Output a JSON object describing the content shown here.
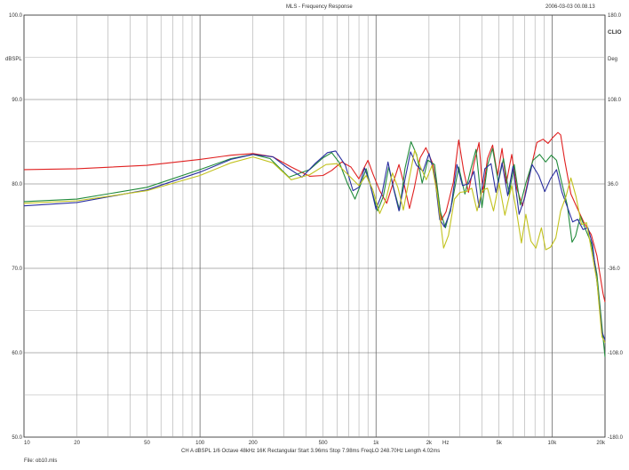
{
  "header": {
    "title": "MLS - Frequency Response",
    "datetime": "2006-03-03 00.08.13",
    "brand": "CLIO"
  },
  "footer": {
    "settings": "CH A  dBSPL  1/6 Octave  48kHz  16K  Rectangular  Start 3.96ms  Stop 7.98ms  FreqLO 248.70Hz  Length 4.02ms",
    "file": "File: ob10.mls"
  },
  "chart_data": {
    "type": "line",
    "xscale": "log",
    "xlim": [
      10,
      20000
    ],
    "ylim": [
      50,
      100
    ],
    "ylim_right": [
      -180,
      180
    ],
    "ylabel": "dBSPL",
    "ylabel_right": "Deg",
    "xlabel": "Hz",
    "grid": true,
    "x_ticks": [
      {
        "v": 10,
        "label": "10"
      },
      {
        "v": 20,
        "label": "20"
      },
      {
        "v": 50,
        "label": "50"
      },
      {
        "v": 100,
        "label": "100"
      },
      {
        "v": 200,
        "label": "200"
      },
      {
        "v": 500,
        "label": "500"
      },
      {
        "v": 1000,
        "label": "1k"
      },
      {
        "v": 2000,
        "label": "2k"
      },
      {
        "v": 5000,
        "label": "5k"
      },
      {
        "v": 10000,
        "label": "10k"
      },
      {
        "v": 20000,
        "label": "20k"
      }
    ],
    "y_ticks": [
      {
        "v": 100,
        "label": "100.0"
      },
      {
        "v": 90,
        "label": "90.0"
      },
      {
        "v": 80,
        "label": "80.0"
      },
      {
        "v": 70,
        "label": "70.0"
      },
      {
        "v": 60,
        "label": "60.0"
      },
      {
        "v": 50,
        "label": "50.0"
      }
    ],
    "y_ticks_right": [
      {
        "v": 180,
        "label": "180.0"
      },
      {
        "v": 108,
        "label": "108.0"
      },
      {
        "v": 36,
        "label": "36.0"
      },
      {
        "v": -36,
        "label": "-36.0"
      },
      {
        "v": -108,
        "label": "-108.0"
      },
      {
        "v": -180,
        "label": "-180.0"
      }
    ],
    "series": [
      {
        "color": "#e02020",
        "points": [
          [
            10,
            81.7
          ],
          [
            20,
            81.8
          ],
          [
            50,
            82.2
          ],
          [
            100,
            82.9
          ],
          [
            150,
            83.4
          ],
          [
            200,
            83.6
          ],
          [
            260,
            83.2
          ],
          [
            330,
            82.0
          ],
          [
            420,
            80.9
          ],
          [
            500,
            81.0
          ],
          [
            560,
            81.6
          ],
          [
            640,
            82.6
          ],
          [
            720,
            82.0
          ],
          [
            800,
            80.6
          ],
          [
            850,
            81.8
          ],
          [
            900,
            82.8
          ],
          [
            960,
            81.2
          ],
          [
            1050,
            79.2
          ],
          [
            1150,
            77.7
          ],
          [
            1250,
            80.1
          ],
          [
            1350,
            82.3
          ],
          [
            1450,
            79.8
          ],
          [
            1550,
            77.1
          ],
          [
            1650,
            79.5
          ],
          [
            1780,
            83.1
          ],
          [
            1920,
            84.3
          ],
          [
            2100,
            82.4
          ],
          [
            2250,
            78.8
          ],
          [
            2350,
            75.7
          ],
          [
            2500,
            76.7
          ],
          [
            2750,
            80.2
          ],
          [
            2950,
            85.2
          ],
          [
            3150,
            81.5
          ],
          [
            3350,
            79.0
          ],
          [
            3600,
            82.4
          ],
          [
            3850,
            84.9
          ],
          [
            4050,
            79.0
          ],
          [
            4300,
            83.0
          ],
          [
            4600,
            84.6
          ],
          [
            4900,
            81.0
          ],
          [
            5200,
            84.2
          ],
          [
            5500,
            80.1
          ],
          [
            5900,
            83.5
          ],
          [
            6300,
            79.5
          ],
          [
            6800,
            77.4
          ],
          [
            7400,
            80.9
          ],
          [
            8200,
            84.9
          ],
          [
            8900,
            85.3
          ],
          [
            9500,
            84.8
          ],
          [
            10100,
            85.5
          ],
          [
            10800,
            86.1
          ],
          [
            11200,
            85.8
          ],
          [
            11800,
            82.8
          ],
          [
            12800,
            78.8
          ],
          [
            14000,
            77.0
          ],
          [
            15200,
            75.4
          ],
          [
            16700,
            74.0
          ],
          [
            18000,
            71.5
          ],
          [
            19500,
            67.0
          ],
          [
            20000,
            66.0
          ]
        ]
      },
      {
        "color": "#208a3a",
        "points": [
          [
            10,
            77.9
          ],
          [
            20,
            78.2
          ],
          [
            50,
            79.6
          ],
          [
            100,
            81.7
          ],
          [
            150,
            83.0
          ],
          [
            200,
            83.5
          ],
          [
            250,
            83.0
          ],
          [
            320,
            80.8
          ],
          [
            420,
            81.7
          ],
          [
            500,
            83.1
          ],
          [
            560,
            83.7
          ],
          [
            620,
            82.5
          ],
          [
            690,
            80.0
          ],
          [
            760,
            78.2
          ],
          [
            820,
            80.0
          ],
          [
            880,
            81.8
          ],
          [
            940,
            79.4
          ],
          [
            1020,
            76.8
          ],
          [
            1100,
            78.5
          ],
          [
            1180,
            82.0
          ],
          [
            1260,
            79.5
          ],
          [
            1360,
            76.9
          ],
          [
            1460,
            81.8
          ],
          [
            1580,
            85.0
          ],
          [
            1700,
            83.5
          ],
          [
            1830,
            80.1
          ],
          [
            1970,
            82.8
          ],
          [
            2150,
            82.3
          ],
          [
            2320,
            76.7
          ],
          [
            2480,
            74.8
          ],
          [
            2700,
            77.7
          ],
          [
            2950,
            82.0
          ],
          [
            3200,
            78.8
          ],
          [
            3450,
            81.7
          ],
          [
            3700,
            84.1
          ],
          [
            4000,
            77.2
          ],
          [
            4300,
            82.2
          ],
          [
            4600,
            84.2
          ],
          [
            4950,
            80.2
          ],
          [
            5300,
            83.0
          ],
          [
            5700,
            78.8
          ],
          [
            6100,
            82.3
          ],
          [
            6600,
            77.5
          ],
          [
            7100,
            80.1
          ],
          [
            7800,
            82.8
          ],
          [
            8500,
            83.5
          ],
          [
            9200,
            82.6
          ],
          [
            9900,
            83.4
          ],
          [
            10600,
            82.8
          ],
          [
            11400,
            80.0
          ],
          [
            12200,
            77.5
          ],
          [
            13000,
            73.1
          ],
          [
            13600,
            73.8
          ],
          [
            14500,
            76.2
          ],
          [
            15500,
            74.6
          ],
          [
            16700,
            73.0
          ],
          [
            18000,
            69.3
          ],
          [
            19500,
            61.8
          ],
          [
            20000,
            59.5
          ]
        ]
      },
      {
        "color": "#2a2fa0",
        "points": [
          [
            10,
            77.4
          ],
          [
            20,
            77.8
          ],
          [
            50,
            79.3
          ],
          [
            100,
            81.4
          ],
          [
            150,
            82.9
          ],
          [
            200,
            83.5
          ],
          [
            260,
            83.2
          ],
          [
            310,
            82.0
          ],
          [
            380,
            80.8
          ],
          [
            450,
            82.4
          ],
          [
            530,
            83.7
          ],
          [
            590,
            83.9
          ],
          [
            670,
            82.2
          ],
          [
            740,
            79.2
          ],
          [
            800,
            79.6
          ],
          [
            860,
            81.9
          ],
          [
            920,
            80.2
          ],
          [
            1000,
            77.0
          ],
          [
            1080,
            78.8
          ],
          [
            1170,
            82.6
          ],
          [
            1260,
            79.4
          ],
          [
            1350,
            76.8
          ],
          [
            1460,
            80.5
          ],
          [
            1570,
            83.8
          ],
          [
            1700,
            82.2
          ],
          [
            1850,
            81.5
          ],
          [
            2000,
            83.6
          ],
          [
            2150,
            81.1
          ],
          [
            2300,
            75.8
          ],
          [
            2450,
            74.9
          ],
          [
            2650,
            76.8
          ],
          [
            2880,
            82.3
          ],
          [
            3100,
            79.8
          ],
          [
            3350,
            80.0
          ],
          [
            3600,
            81.5
          ],
          [
            3850,
            77.2
          ],
          [
            4150,
            81.8
          ],
          [
            4500,
            82.4
          ],
          [
            4800,
            79.0
          ],
          [
            5200,
            82.5
          ],
          [
            5600,
            78.6
          ],
          [
            6000,
            82.1
          ],
          [
            6500,
            76.4
          ],
          [
            7000,
            78.4
          ],
          [
            7700,
            82.3
          ],
          [
            8400,
            81.0
          ],
          [
            9100,
            79.1
          ],
          [
            9800,
            80.6
          ],
          [
            10600,
            81.7
          ],
          [
            11400,
            79.0
          ],
          [
            12200,
            77.3
          ],
          [
            13100,
            75.5
          ],
          [
            14000,
            75.8
          ],
          [
            15000,
            74.6
          ],
          [
            16000,
            74.8
          ],
          [
            17000,
            72.8
          ],
          [
            18200,
            67.5
          ],
          [
            19200,
            62.5
          ],
          [
            20000,
            61.5
          ]
        ]
      },
      {
        "color": "#c2c21e",
        "points": [
          [
            10,
            77.7
          ],
          [
            20,
            78.0
          ],
          [
            50,
            79.2
          ],
          [
            100,
            81.0
          ],
          [
            150,
            82.5
          ],
          [
            200,
            83.2
          ],
          [
            260,
            82.5
          ],
          [
            330,
            80.5
          ],
          [
            420,
            81.1
          ],
          [
            520,
            82.3
          ],
          [
            600,
            82.4
          ],
          [
            700,
            81.0
          ],
          [
            800,
            79.8
          ],
          [
            880,
            81.0
          ],
          [
            960,
            79.3
          ],
          [
            1050,
            76.5
          ],
          [
            1140,
            78.2
          ],
          [
            1240,
            81.3
          ],
          [
            1330,
            79.6
          ],
          [
            1430,
            76.9
          ],
          [
            1540,
            80.5
          ],
          [
            1660,
            84.0
          ],
          [
            1790,
            82.0
          ],
          [
            1930,
            80.5
          ],
          [
            2080,
            82.2
          ],
          [
            2240,
            78.5
          ],
          [
            2420,
            72.4
          ],
          [
            2580,
            73.9
          ],
          [
            2790,
            78.2
          ],
          [
            3000,
            79.0
          ],
          [
            3250,
            79.1
          ],
          [
            3500,
            79.5
          ],
          [
            3750,
            76.8
          ],
          [
            4000,
            79.2
          ],
          [
            4300,
            79.5
          ],
          [
            4650,
            76.8
          ],
          [
            5000,
            80.1
          ],
          [
            5400,
            76.3
          ],
          [
            5900,
            79.8
          ],
          [
            6300,
            76.6
          ],
          [
            6700,
            73.0
          ],
          [
            7100,
            76.4
          ],
          [
            7600,
            73.2
          ],
          [
            8100,
            72.4
          ],
          [
            8700,
            74.8
          ],
          [
            9200,
            72.2
          ],
          [
            9800,
            72.5
          ],
          [
            10500,
            73.6
          ],
          [
            11200,
            76.8
          ],
          [
            12000,
            78.5
          ],
          [
            12800,
            80.7
          ],
          [
            13700,
            78.5
          ],
          [
            14700,
            75.2
          ],
          [
            15700,
            75.4
          ],
          [
            16800,
            72.0
          ],
          [
            18000,
            68.5
          ],
          [
            19200,
            61.9
          ],
          [
            20000,
            61.2
          ]
        ]
      }
    ]
  }
}
